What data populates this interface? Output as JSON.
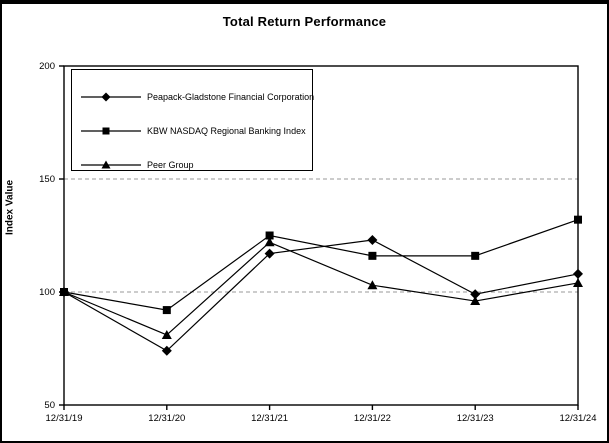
{
  "window": {
    "title": "Total Return Performance"
  },
  "chart_data": {
    "type": "line",
    "title": "Total Return Performance",
    "xlabel": "",
    "ylabel": "Index Value",
    "ylim": [
      50,
      200
    ],
    "yticks": [
      50,
      100,
      150,
      200
    ],
    "gridlines_at": [
      100,
      150
    ],
    "grid_style": "horizontal dashed gray at interior ticks; top and bottom are solid black frame lines",
    "legend_position": "boxed, top-left inside plot area",
    "categories": [
      "12/31/19",
      "12/31/20",
      "12/31/21",
      "12/31/22",
      "12/31/23",
      "12/31/24"
    ],
    "series": [
      {
        "name": "Peapack-Gladstone Financial Corporation",
        "marker": "diamond",
        "values": [
          100,
          74,
          117,
          123,
          99,
          108
        ]
      },
      {
        "name": "KBW NASDAQ Regional Banking Index",
        "marker": "square",
        "values": [
          100,
          92,
          125,
          116,
          116,
          132
        ]
      },
      {
        "name": "Peer Group",
        "marker": "triangle",
        "values": [
          100,
          81,
          122,
          103,
          96,
          104
        ]
      }
    ],
    "colors": {
      "series_line": "#000000",
      "marker_fill": "#000000",
      "gridline": "#999999",
      "axis": "#000000",
      "background": "#ffffff",
      "outer_border": "#000000"
    }
  }
}
